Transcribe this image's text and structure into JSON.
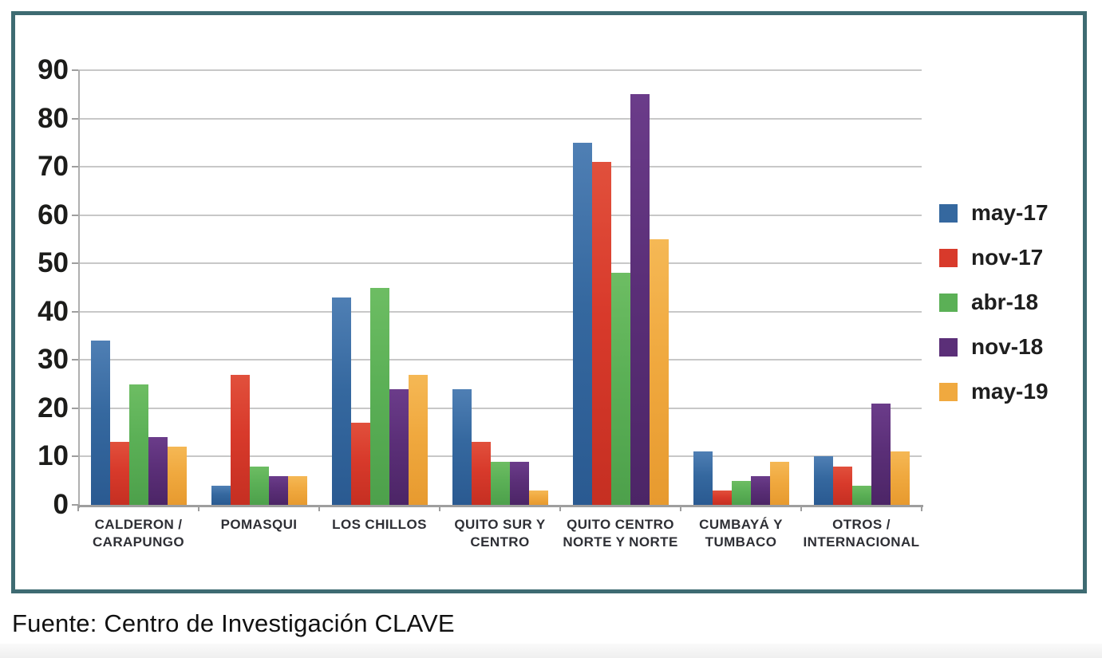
{
  "chart_data": {
    "type": "bar",
    "title": "",
    "xlabel": "",
    "ylabel": "",
    "categories": [
      "CALDERON / CARAPUNGO",
      "POMASQUI",
      "LOS CHILLOS",
      "QUITO SUR Y CENTRO",
      "QUITO CENTRO NORTE Y NORTE",
      "CUMBAYÁ Y TUMBACO",
      "OTROS / INTERNACIONAL"
    ],
    "category_label_lines": [
      [
        "CALDERON /",
        "CARAPUNGO"
      ],
      [
        "POMASQUI"
      ],
      [
        "LOS CHILLOS"
      ],
      [
        "QUITO SUR Y",
        "CENTRO"
      ],
      [
        "QUITO CENTRO",
        "NORTE Y NORTE"
      ],
      [
        "CUMBAYÁ Y",
        "TUMBACO"
      ],
      [
        "OTROS /",
        "INTERNACIONAL"
      ]
    ],
    "series": [
      {
        "name": "may-17",
        "color": "#35689F",
        "color_light": "#4F7FB4",
        "color_dark": "#2A5A91",
        "values": [
          34,
          4,
          43,
          24,
          75,
          11,
          10
        ]
      },
      {
        "name": "nov-17",
        "color": "#D83A2B",
        "color_light": "#E1503C",
        "color_dark": "#C52F22",
        "values": [
          13,
          27,
          17,
          13,
          71,
          3,
          8
        ]
      },
      {
        "name": "abr-18",
        "color": "#5BB056",
        "color_light": "#6DBD63",
        "color_dark": "#4DA04B",
        "values": [
          25,
          8,
          45,
          9,
          48,
          5,
          4
        ]
      },
      {
        "name": "nov-18",
        "color": "#5B2F78",
        "color_light": "#6B3C8A",
        "color_dark": "#4C2566",
        "values": [
          14,
          6,
          24,
          9,
          85,
          6,
          21
        ]
      },
      {
        "name": "may-19",
        "color": "#F0A93F",
        "color_light": "#F5B855",
        "color_dark": "#E79A2F",
        "values": [
          12,
          6,
          27,
          3,
          55,
          9,
          11
        ]
      }
    ],
    "ylim": [
      0,
      90
    ],
    "y_tick_step": 10,
    "y_tick_labels": [
      "0",
      "10",
      "20",
      "30",
      "40",
      "50",
      "60",
      "70",
      "80",
      "90"
    ],
    "grid": true,
    "legend_position": "right"
  },
  "source_line": "Fuente: Centro de Investigación CLAVE",
  "colors": {
    "frame_border": "#3E6B72",
    "gridline": "#C8C8C8",
    "axis": "#A2A2A2",
    "tick_label": "#1C1C1A",
    "category_label": "#2E2F35",
    "legend_label": "#1E1E1E",
    "source_text": "#111111",
    "background": "#FFFFFF",
    "bottom_band": "#F1F1F1"
  }
}
